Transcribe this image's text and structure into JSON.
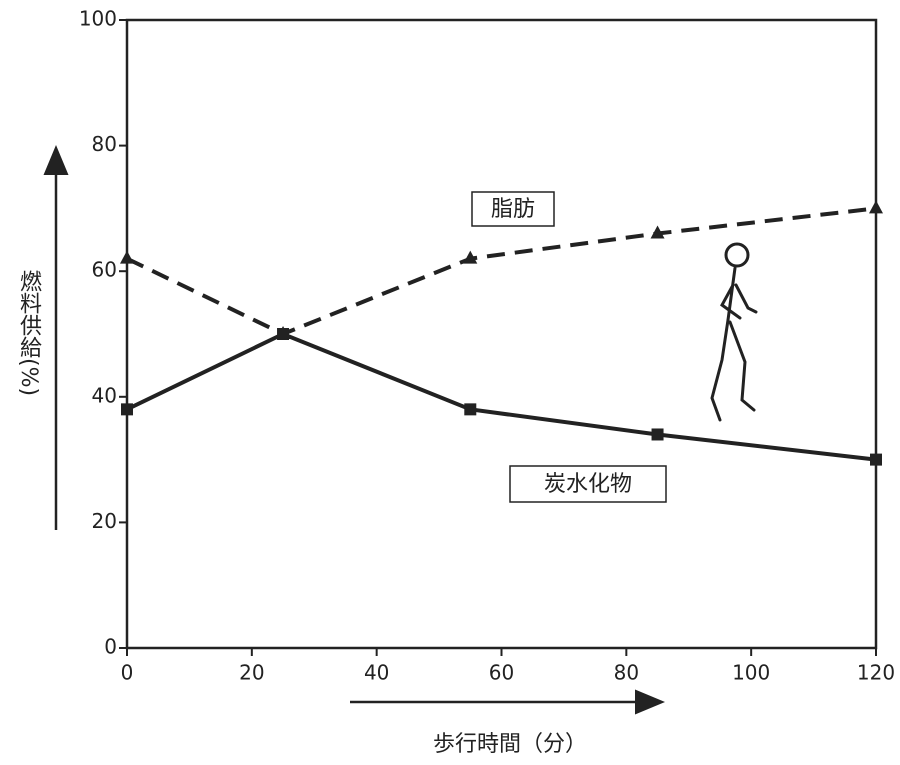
{
  "chart_data": {
    "type": "line",
    "y_label": "燃料供給(%)",
    "x_label": "歩行時間（分）",
    "annotations": [
      "脂肪",
      "炭水化物"
    ],
    "xlim": [
      0,
      120
    ],
    "xticks": [
      0,
      20,
      40,
      60,
      80,
      100,
      120
    ],
    "ylim": [
      0,
      100
    ],
    "yticks": [
      0,
      20,
      40,
      60,
      80,
      100
    ],
    "grid": false,
    "series": [
      {
        "name": "脂肪",
        "color": "#222222",
        "linestyle": "dashed",
        "marker": "triangle",
        "x": [
          0,
          25,
          55,
          85,
          120
        ],
        "values": [
          62,
          50,
          62,
          66,
          70
        ]
      },
      {
        "name": "炭水化物",
        "color": "#222222",
        "linestyle": "solid",
        "marker": "square",
        "x": [
          0,
          25,
          55,
          85,
          120
        ],
        "values": [
          38,
          50,
          38,
          34,
          30
        ]
      }
    ]
  }
}
